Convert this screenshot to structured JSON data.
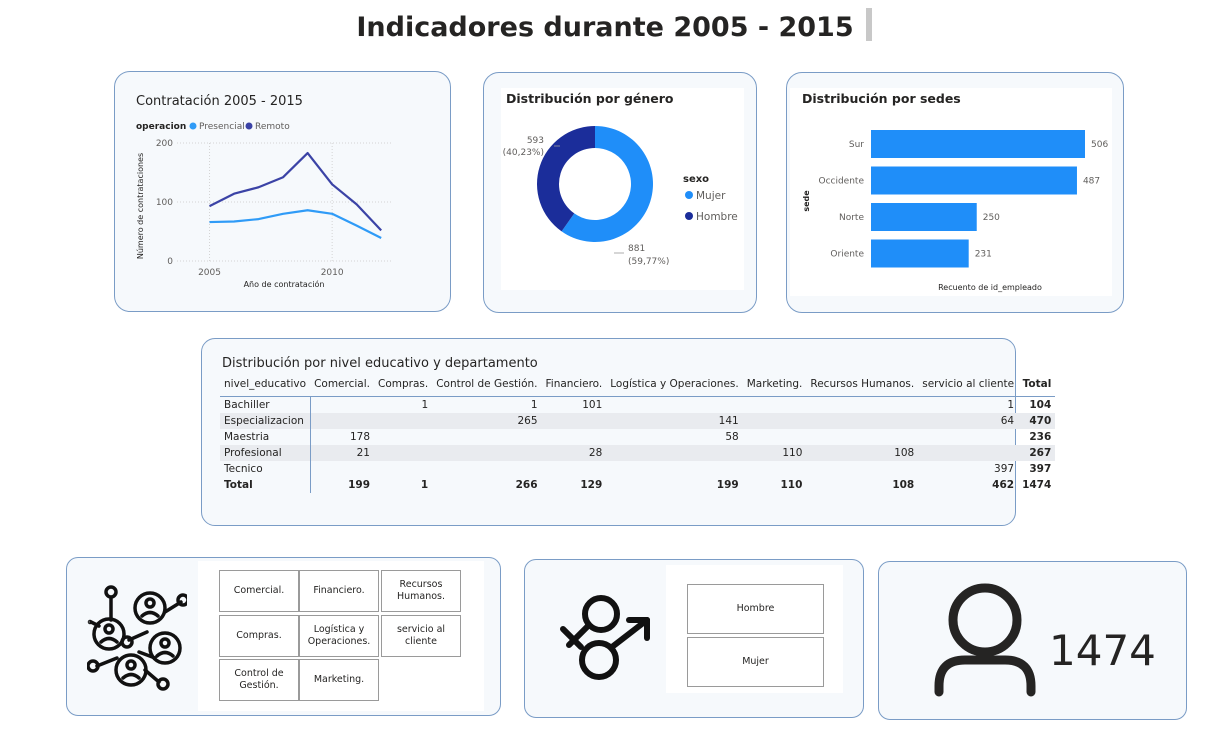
{
  "page": {
    "title": "Indicadores durante 2005 - 2015"
  },
  "line_chart": {
    "title": "Contratación 2005 - 2015",
    "legend_title": "operacion",
    "colors": {
      "Presencial": "#2f9bf7",
      "Remoto": "#3b43a6"
    }
  },
  "donut_chart": {
    "title": "Distribución por género",
    "legend_title": "sexo",
    "label_hombre_count": "593",
    "label_hombre_pct": "(40,23%)",
    "label_mujer_count": "881",
    "label_mujer_pct": "(59,77%)",
    "colors": {
      "Mujer": "#1f8ef9",
      "Hombre": "#1b2d9a"
    }
  },
  "bar_chart": {
    "title": "Distribución por sedes",
    "color": "#1f8ef9"
  },
  "matrix": {
    "title": "Distribución por nivel educativo y departamento",
    "row_header": "nivel_educativo",
    "columns": [
      "Comercial.",
      "Compras.",
      "Control de Gestión.",
      "Financiero.",
      "Logística y Operaciones.",
      "Marketing.",
      "Recursos Humanos.",
      "servicio al cliente",
      "Total"
    ],
    "rows": [
      {
        "label": "Bachiller",
        "cells": [
          "",
          "1",
          "1",
          "101",
          "",
          "",
          "",
          "1",
          "104"
        ]
      },
      {
        "label": "Especializacion",
        "cells": [
          "",
          "",
          "265",
          "",
          "141",
          "",
          "",
          "64",
          "470"
        ]
      },
      {
        "label": "Maestria",
        "cells": [
          "178",
          "",
          "",
          "",
          "58",
          "",
          "",
          "",
          "236"
        ]
      },
      {
        "label": "Profesional",
        "cells": [
          "21",
          "",
          "",
          "28",
          "",
          "110",
          "108",
          "",
          "267"
        ]
      },
      {
        "label": "Tecnico",
        "cells": [
          "",
          "",
          "",
          "",
          "",
          "",
          "",
          "397",
          "397"
        ]
      }
    ],
    "total_row": {
      "label": "Total",
      "cells": [
        "199",
        "1",
        "266",
        "129",
        "199",
        "110",
        "108",
        "462",
        "1474"
      ]
    }
  },
  "department_slicer": {
    "icon": "team-network-icon",
    "buttons": [
      "Comercial.",
      "Financiero.",
      "Recursos Humanos.",
      "Compras.",
      "Logística y Operaciones.",
      "servicio al cliente",
      "Control de Gestión.",
      "Marketing."
    ]
  },
  "gender_slicer": {
    "icon": "gender-symbols-icon",
    "buttons": [
      "Hombre",
      "Mujer"
    ]
  },
  "kpi": {
    "icon": "person-icon",
    "value": "1474"
  },
  "chart_data": [
    {
      "type": "line",
      "title": "Contratación 2005 - 2015",
      "xlabel": "Año de contratación",
      "ylabel": "Número de contrataciones",
      "x": [
        2005,
        2006,
        2007,
        2008,
        2009,
        2010,
        2011,
        2012
      ],
      "x_ticks": [
        2005,
        2010
      ],
      "y_ticks": [
        0,
        100,
        200
      ],
      "xlim": [
        2004,
        2012.4
      ],
      "ylim": [
        0,
        200
      ],
      "grid": true,
      "legend": "top-left",
      "series": [
        {
          "name": "Presencial",
          "values": [
            66,
            67,
            71,
            80,
            86,
            80,
            60,
            39
          ]
        },
        {
          "name": "Remoto",
          "values": [
            93,
            114,
            125,
            142,
            183,
            130,
            96,
            52
          ]
        }
      ]
    },
    {
      "type": "pie",
      "title": "Distribución por género",
      "categories": [
        "Mujer",
        "Hombre"
      ],
      "values": [
        881,
        593
      ],
      "percentages": [
        "59,77%",
        "40,23%"
      ],
      "legend": "right"
    },
    {
      "type": "bar",
      "title": "Distribución por sedes",
      "orientation": "horizontal",
      "categories": [
        "Sur",
        "Occidente",
        "Norte",
        "Oriente"
      ],
      "values": [
        506,
        487,
        250,
        231
      ],
      "xlabel": "Recuento de id_empleado",
      "ylabel": "sede",
      "xlim": [
        0,
        506
      ]
    }
  ]
}
